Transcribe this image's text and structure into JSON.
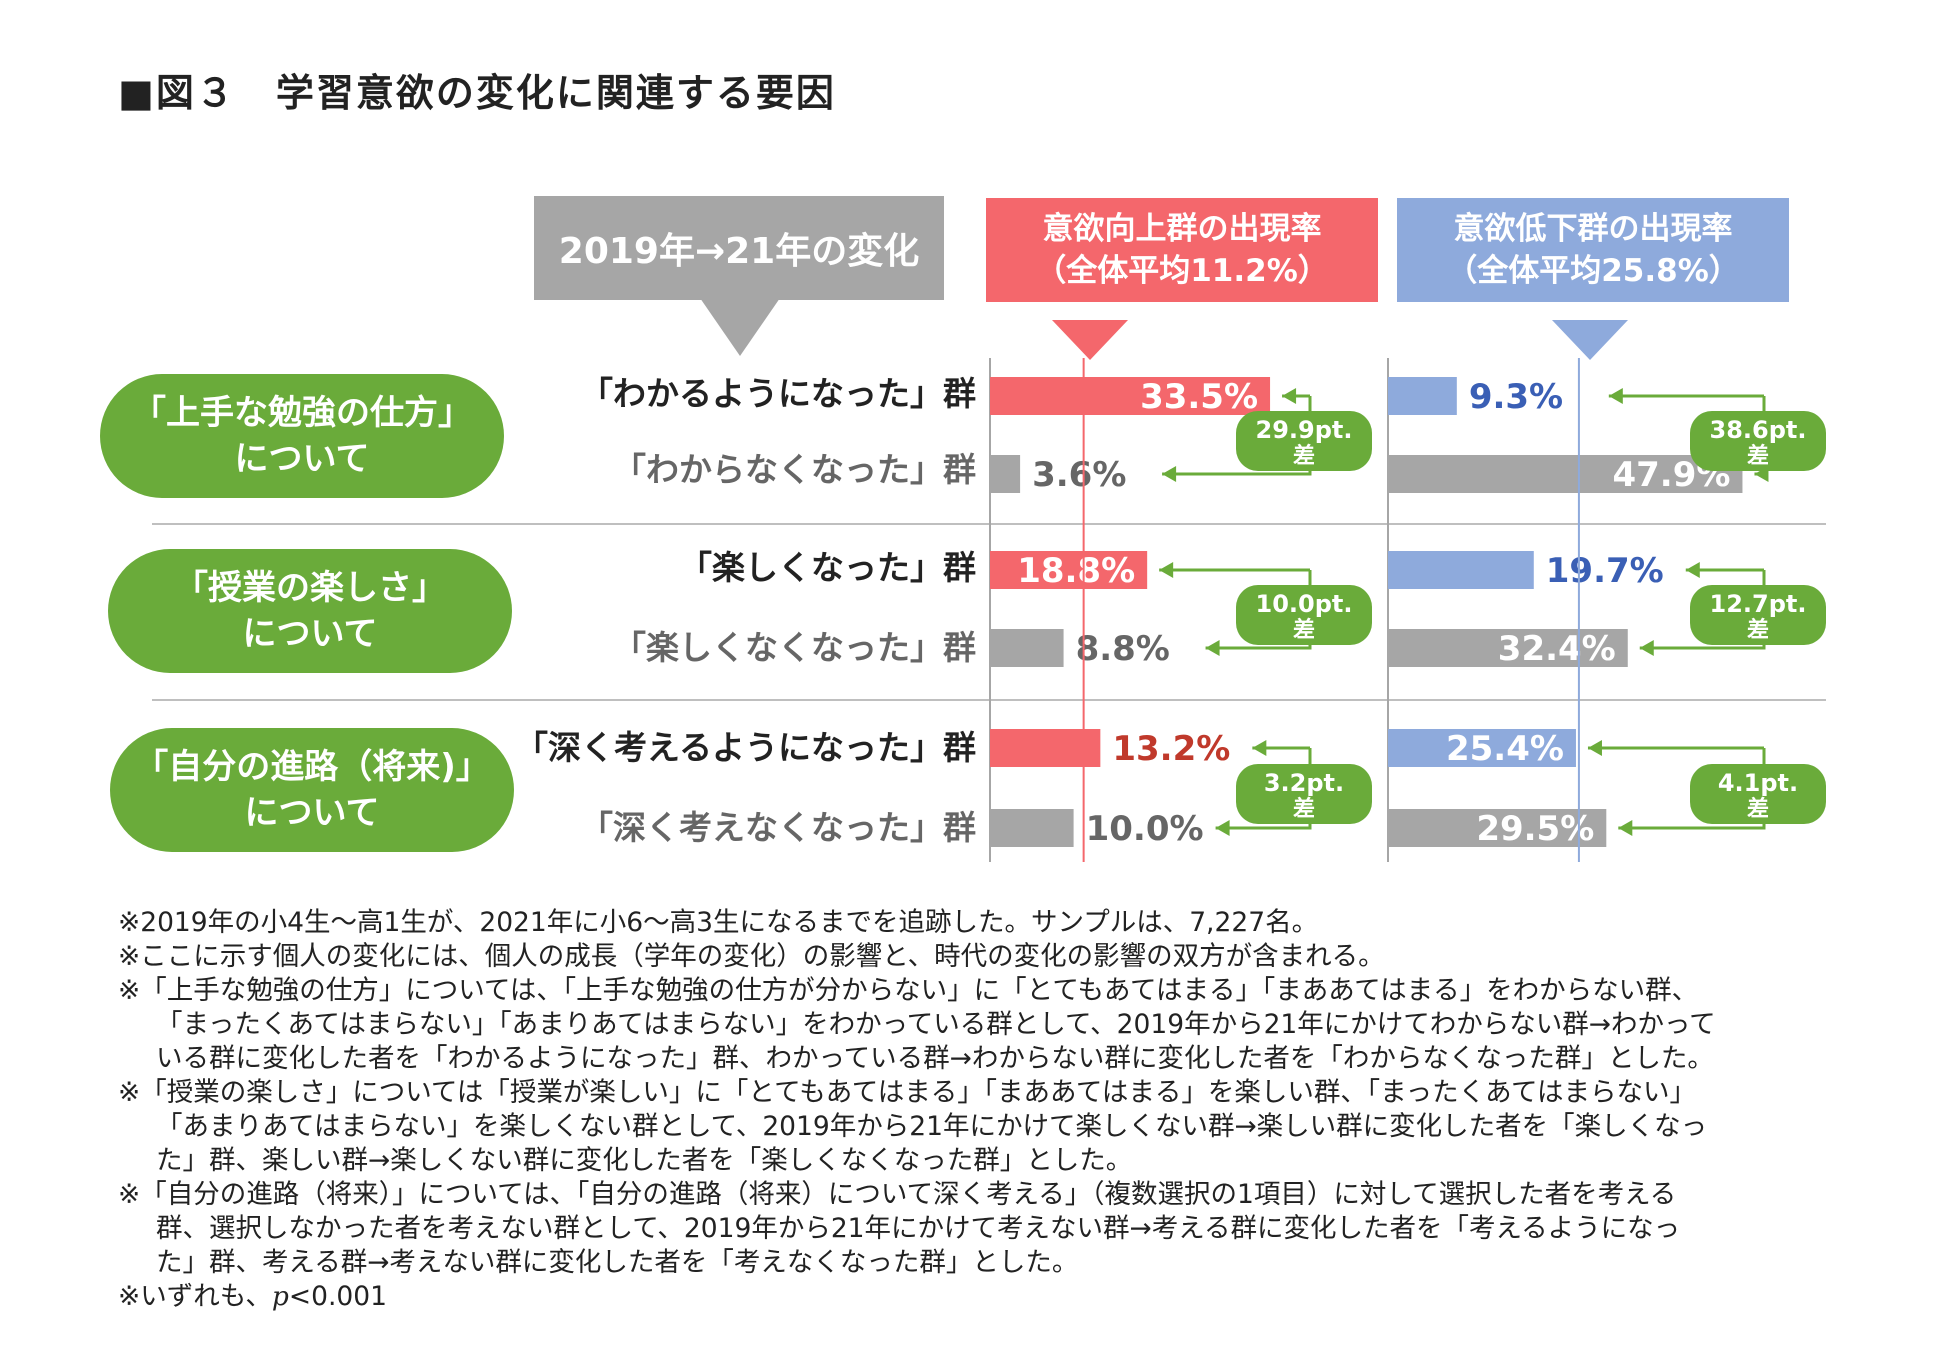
{
  "title": "■図３　学習意欲の変化に関連する要因",
  "headers": {
    "change": "2019年→21年の変化",
    "up_line1": "意欲向上群の出現率",
    "up_line2": "（全体平均11.2%）",
    "down_line1": "意欲低下群の出現率",
    "down_line2": "（全体平均25.8%）"
  },
  "topics": [
    {
      "line1": "「上手な勉強の仕方」",
      "line2": "について"
    },
    {
      "line1": "「授業の楽しさ」",
      "line2": "について"
    },
    {
      "line1": "「自分の進路（将来)」",
      "line2": "について"
    }
  ],
  "group_labels": [
    [
      "「わかるようになった」群",
      "「わからなくなった」群"
    ],
    [
      "「楽しくなった」群",
      "「楽しくなくなった」群"
    ],
    [
      "「深く考えるようになった」群",
      "「深く考えなくなった」群"
    ]
  ],
  "colors": {
    "up_bar": "#f4676c",
    "down_bar": "#8eaadc",
    "gray_bar": "#a6a6a6",
    "green": "#6aab3a",
    "highlight_red": "#c0392b",
    "highlight_blue": "#3a5fb5"
  },
  "chart_data": {
    "type": "bar",
    "title": "学習意欲の変化に関連する要因",
    "xlim": [
      0,
      60
    ],
    "series": [
      {
        "name": "意欲向上群の出現率",
        "average": 11.2
      },
      {
        "name": "意欲低下群の出現率",
        "average": 25.8
      }
    ],
    "groups": [
      {
        "topic": "「上手な勉強の仕方」について",
        "up": {
          "improved": "33.5%",
          "worsened": "3.6%",
          "improved_value": 33.5,
          "worsened_value": 3.6,
          "diff": [
            "29.9pt.",
            "差"
          ]
        },
        "down": {
          "improved": "9.3%",
          "worsened": "47.9%",
          "improved_value": 9.3,
          "worsened_value": 47.9,
          "diff": [
            "38.6pt.",
            "差"
          ]
        }
      },
      {
        "topic": "「授業の楽しさ」について",
        "up": {
          "improved": "18.8%",
          "worsened": "8.8%",
          "improved_value": 18.8,
          "worsened_value": 8.8,
          "diff": [
            "10.0pt.",
            "差"
          ]
        },
        "down": {
          "improved": "19.7%",
          "worsened": "32.4%",
          "improved_value": 19.7,
          "worsened_value": 32.4,
          "diff": [
            "12.7pt.",
            "差"
          ]
        }
      },
      {
        "topic": "「自分の進路（将来)」について",
        "up": {
          "improved": "13.2%",
          "worsened": "10.0%",
          "improved_value": 13.2,
          "worsened_value": 10.0,
          "diff": [
            "3.2pt.",
            "差"
          ]
        },
        "down": {
          "improved": "25.4%",
          "worsened": "29.5%",
          "improved_value": 25.4,
          "worsened_value": 29.5,
          "diff": [
            "4.1pt.",
            "差"
          ]
        }
      }
    ]
  },
  "notes": [
    "※2019年の小4生～高1生が、2021年に小6～高3生になるまでを追跡した。サンプルは、7,227名。",
    "※ここに示す個人の変化には、個人の成長（学年の変化）の影響と、時代の変化の影響の双方が含まれる。",
    "※「上手な勉強の仕方」については、「上手な勉強の仕方が分からない」に「とてもあてはまる」「まああてはまる」をわからない群、",
    "「まったくあてはまらない」「あまりあてはまらない」をわかっている群として、2019年から21年にかけてわからない群→わかって",
    "いる群に変化した者を「わかるようになった」群、わかっている群→わからない群に変化した者を「わからなくなった群」とした。",
    "※「授業の楽しさ」については「授業が楽しい」に「とてもあてはまる」「まああてはまる」を楽しい群、「まったくあてはまらない」",
    "「あまりあてはまらない」を楽しくない群として、2019年から21年にかけて楽しくない群→楽しい群に変化した者を「楽しくなっ",
    "た」群、楽しい群→楽しくない群に変化した者を「楽しくなくなった群」とした。",
    "※「自分の進路（将来）」については、「自分の進路（将来）について深く考える」（複数選択の1項目）に対して選択した者を考える",
    "群、選択しなかった者を考えない群として、2019年から21年にかけて考えない群→考える群に変化した者を「考えるようになっ",
    "た」群、考える群→考えない群に変化した者を「考えなくなった群」とした。"
  ],
  "last_note": {
    "prefix": "※いずれも、",
    "italic": "p",
    "suffix": "<0.001"
  }
}
